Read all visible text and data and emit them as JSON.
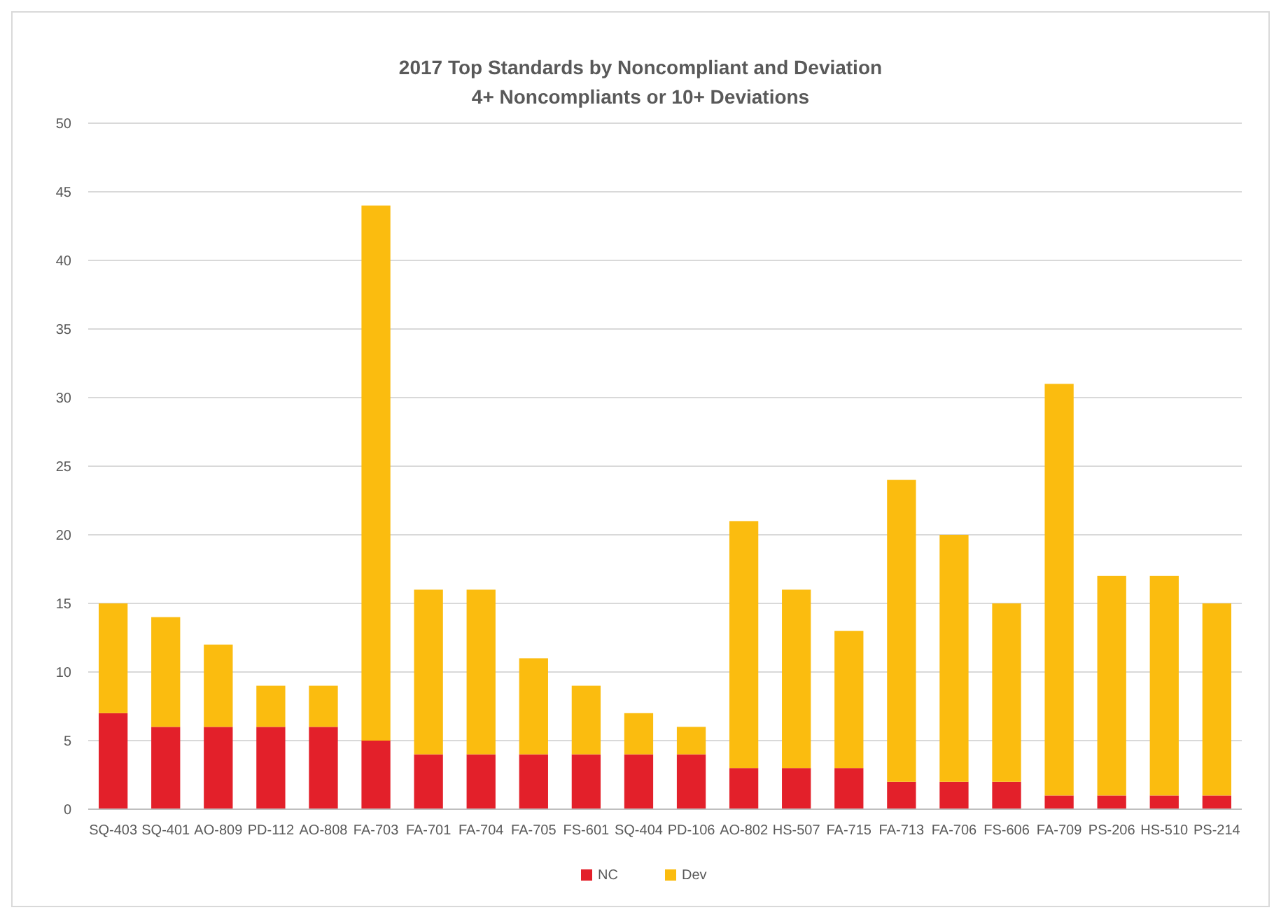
{
  "chart_data": {
    "type": "bar",
    "title": "2017 Top Standards by Noncompliant and Deviation",
    "subtitle": "4+ Noncompliants or 10+ Deviations",
    "categories": [
      "SQ-403",
      "SQ-401",
      "AO-809",
      "PD-112",
      "AO-808",
      "FA-703",
      "FA-701",
      "FA-704",
      "FA-705",
      "FS-601",
      "SQ-404",
      "PD-106",
      "AO-802",
      "HS-507",
      "FA-715",
      "FA-713",
      "FA-706",
      "FS-606",
      "FA-709",
      "PS-206",
      "HS-510",
      "PS-214"
    ],
    "series": [
      {
        "name": "NC",
        "color": "#e3202a",
        "values": [
          7,
          6,
          6,
          6,
          6,
          5,
          4,
          4,
          4,
          4,
          4,
          4,
          3,
          3,
          3,
          2,
          2,
          2,
          1,
          1,
          1,
          1
        ]
      },
      {
        "name": "Dev",
        "color": "#fbbc0f",
        "values": [
          8,
          8,
          6,
          3,
          3,
          39,
          12,
          12,
          7,
          5,
          3,
          2,
          18,
          13,
          10,
          22,
          18,
          13,
          30,
          16,
          16,
          14
        ]
      }
    ],
    "stacked": true,
    "ylim": [
      0,
      50
    ],
    "yticks": [
      0,
      5,
      10,
      15,
      20,
      25,
      30,
      35,
      40,
      45,
      50
    ],
    "grid": "y",
    "legend": "bottom"
  }
}
